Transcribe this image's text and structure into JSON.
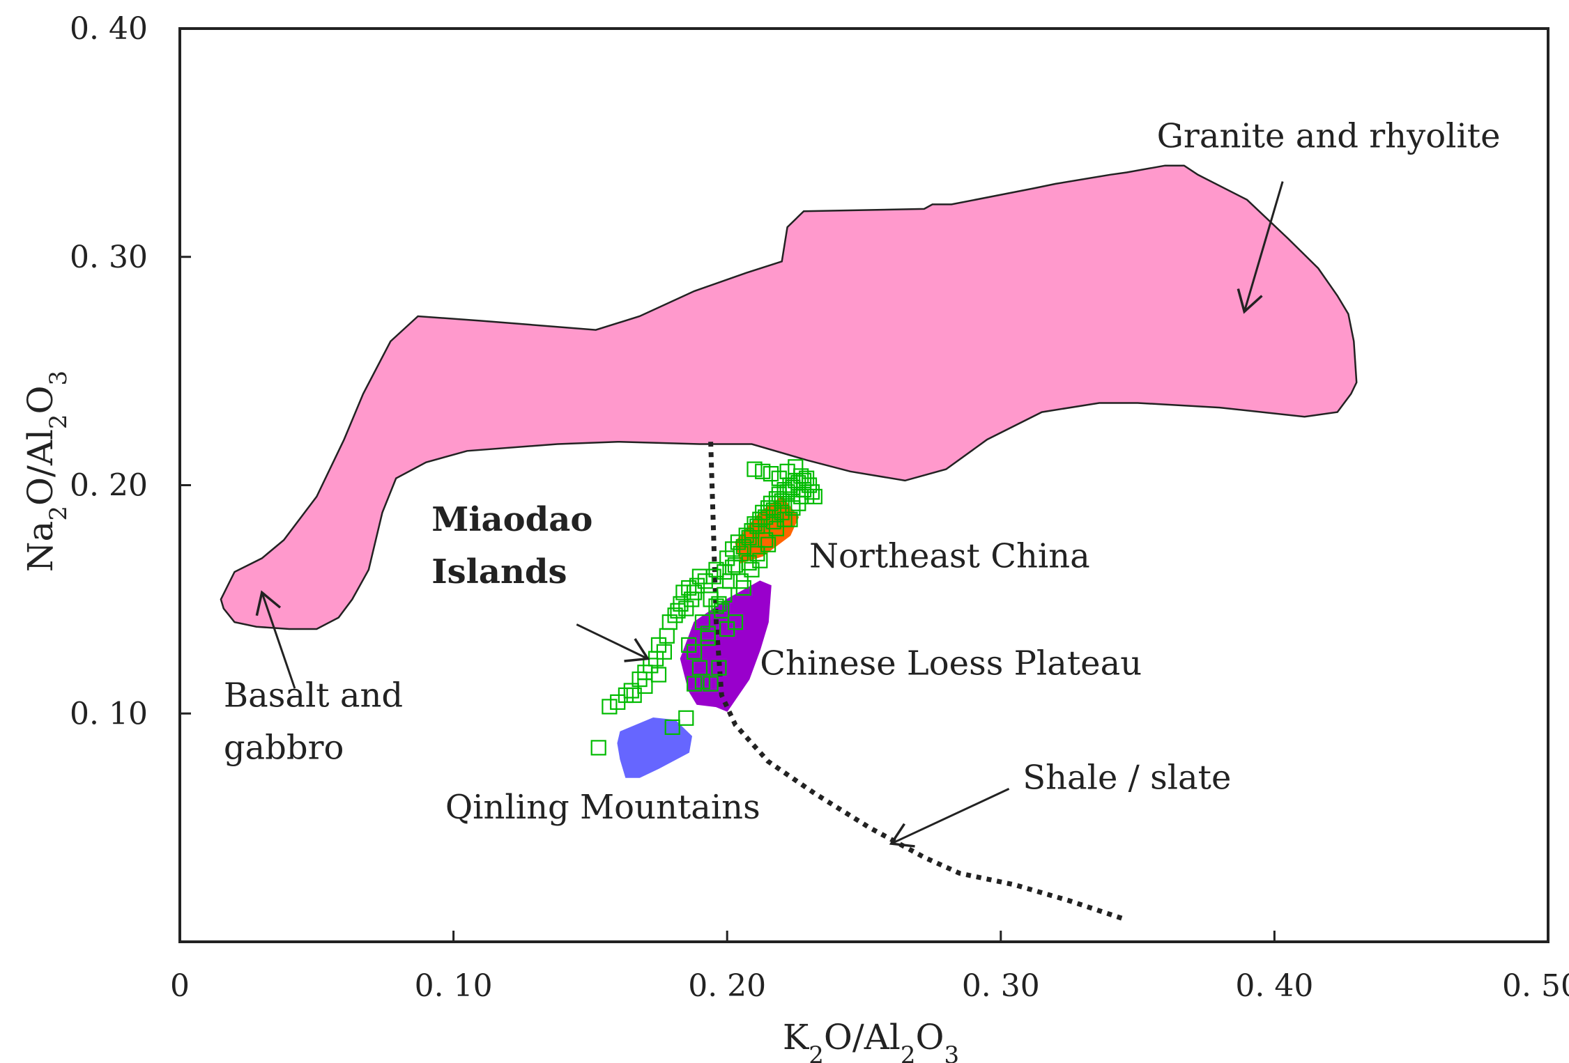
{
  "chart_data": {
    "type": "scatter",
    "xlabel": {
      "base1": "K",
      "sub1": "2",
      "base2": "O/Al",
      "sub2": "2",
      "base3": "O",
      "sub3": "3"
    },
    "ylabel": {
      "base1": "Na",
      "sub1": "2",
      "base2": "O/Al",
      "sub2": "2",
      "base3": "O",
      "sub3": "3"
    },
    "xlim": [
      0,
      0.5
    ],
    "ylim": [
      0,
      0.4
    ],
    "x_ticks": [
      {
        "value": 0,
        "label": "0"
      },
      {
        "value": 0.1,
        "label": "0. 10"
      },
      {
        "value": 0.2,
        "label": "0. 20"
      },
      {
        "value": 0.3,
        "label": "0. 30"
      },
      {
        "value": 0.4,
        "label": "0. 40"
      },
      {
        "value": 0.5,
        "label": "0. 50"
      }
    ],
    "y_ticks": [
      {
        "value": 0.1,
        "label": "0. 10"
      },
      {
        "value": 0.2,
        "label": "0. 20"
      },
      {
        "value": 0.3,
        "label": "0. 30"
      },
      {
        "value": 0.4,
        "label": "0. 40"
      }
    ],
    "fields": [
      {
        "name": "Granite and rhyolite field",
        "color": "#ff99cc",
        "polygon": [
          [
            0.015,
            0.15
          ],
          [
            0.02,
            0.162
          ],
          [
            0.03,
            0.168
          ],
          [
            0.038,
            0.176
          ],
          [
            0.05,
            0.195
          ],
          [
            0.06,
            0.22
          ],
          [
            0.067,
            0.24
          ],
          [
            0.077,
            0.263
          ],
          [
            0.087,
            0.274
          ],
          [
            0.11,
            0.272
          ],
          [
            0.152,
            0.268
          ],
          [
            0.168,
            0.274
          ],
          [
            0.188,
            0.285
          ],
          [
            0.207,
            0.293
          ],
          [
            0.22,
            0.298
          ],
          [
            0.222,
            0.313
          ],
          [
            0.228,
            0.32
          ],
          [
            0.272,
            0.321
          ],
          [
            0.275,
            0.323
          ],
          [
            0.282,
            0.323
          ],
          [
            0.312,
            0.33
          ],
          [
            0.32,
            0.332
          ],
          [
            0.34,
            0.336
          ],
          [
            0.346,
            0.337
          ],
          [
            0.36,
            0.34
          ],
          [
            0.367,
            0.34
          ],
          [
            0.372,
            0.336
          ],
          [
            0.39,
            0.325
          ],
          [
            0.405,
            0.308
          ],
          [
            0.416,
            0.295
          ],
          [
            0.423,
            0.283
          ],
          [
            0.427,
            0.275
          ],
          [
            0.429,
            0.263
          ],
          [
            0.43,
            0.245
          ],
          [
            0.428,
            0.24
          ],
          [
            0.423,
            0.232
          ],
          [
            0.411,
            0.23
          ],
          [
            0.38,
            0.234
          ],
          [
            0.35,
            0.236
          ],
          [
            0.336,
            0.236
          ],
          [
            0.315,
            0.232
          ],
          [
            0.295,
            0.22
          ],
          [
            0.28,
            0.207
          ],
          [
            0.265,
            0.202
          ],
          [
            0.245,
            0.206
          ],
          [
            0.229,
            0.211
          ],
          [
            0.209,
            0.218
          ],
          [
            0.19,
            0.218
          ],
          [
            0.16,
            0.219
          ],
          [
            0.138,
            0.218
          ],
          [
            0.105,
            0.215
          ],
          [
            0.09,
            0.21
          ],
          [
            0.079,
            0.203
          ],
          [
            0.074,
            0.188
          ],
          [
            0.069,
            0.163
          ],
          [
            0.063,
            0.15
          ],
          [
            0.058,
            0.142
          ],
          [
            0.05,
            0.137
          ],
          [
            0.04,
            0.137
          ],
          [
            0.028,
            0.138
          ],
          [
            0.02,
            0.14
          ],
          [
            0.016,
            0.146
          ]
        ]
      },
      {
        "name": "Chinese Loess Plateau field",
        "color": "#9900cc",
        "polygon": [
          [
            0.188,
            0.14
          ],
          [
            0.2,
            0.15
          ],
          [
            0.212,
            0.158
          ],
          [
            0.216,
            0.156
          ],
          [
            0.215,
            0.14
          ],
          [
            0.212,
            0.128
          ],
          [
            0.208,
            0.115
          ],
          [
            0.2,
            0.101
          ],
          [
            0.196,
            0.103
          ],
          [
            0.189,
            0.104
          ],
          [
            0.186,
            0.11
          ],
          [
            0.183,
            0.124
          ]
        ]
      },
      {
        "name": "Qinling Mountains field",
        "color": "#6666ff",
        "polygon": [
          [
            0.161,
            0.092
          ],
          [
            0.173,
            0.098
          ],
          [
            0.181,
            0.097
          ],
          [
            0.187,
            0.09
          ],
          [
            0.186,
            0.083
          ],
          [
            0.175,
            0.076
          ],
          [
            0.168,
            0.072
          ],
          [
            0.163,
            0.072
          ],
          [
            0.161,
            0.08
          ],
          [
            0.16,
            0.087
          ]
        ]
      },
      {
        "name": "Northeast China field",
        "color": "#ff6600",
        "polygon": [
          [
            0.203,
            0.175
          ],
          [
            0.212,
            0.188
          ],
          [
            0.22,
            0.195
          ],
          [
            0.226,
            0.186
          ],
          [
            0.223,
            0.178
          ],
          [
            0.213,
            0.169
          ],
          [
            0.205,
            0.166
          ]
        ]
      }
    ],
    "shale_slate_curve": {
      "color": "#222222",
      "points": [
        [
          0.194,
          0.219
        ],
        [
          0.195,
          0.18
        ],
        [
          0.196,
          0.14
        ],
        [
          0.198,
          0.108
        ],
        [
          0.203,
          0.095
        ],
        [
          0.215,
          0.079
        ],
        [
          0.232,
          0.065
        ],
        [
          0.252,
          0.05
        ],
        [
          0.272,
          0.037
        ],
        [
          0.285,
          0.03
        ],
        [
          0.305,
          0.025
        ],
        [
          0.325,
          0.018
        ],
        [
          0.345,
          0.01
        ]
      ]
    },
    "series": [
      {
        "marker": "open-square",
        "color": "#00bb00",
        "x": [
          0.153,
          0.157,
          0.16,
          0.163,
          0.165,
          0.168,
          0.17,
          0.172,
          0.174,
          0.175,
          0.177,
          0.179,
          0.181,
          0.183,
          0.185,
          0.186,
          0.187,
          0.188,
          0.189,
          0.19,
          0.191,
          0.192,
          0.193,
          0.194,
          0.195,
          0.196,
          0.197,
          0.198,
          0.199,
          0.2,
          0.201,
          0.202,
          0.203,
          0.204,
          0.205,
          0.206,
          0.207,
          0.208,
          0.209,
          0.21,
          0.211,
          0.212,
          0.213,
          0.214,
          0.215,
          0.216,
          0.217,
          0.218,
          0.219,
          0.22,
          0.221,
          0.222,
          0.223,
          0.224,
          0.225,
          0.226,
          0.227,
          0.228,
          0.229,
          0.23,
          0.231,
          0.17,
          0.175,
          0.178,
          0.182,
          0.184,
          0.186,
          0.188,
          0.19,
          0.193,
          0.196,
          0.199,
          0.202,
          0.205,
          0.208,
          0.211,
          0.214,
          0.217,
          0.22,
          0.223,
          0.226,
          0.229,
          0.232,
          0.166,
          0.18,
          0.185,
          0.188,
          0.191,
          0.194,
          0.197,
          0.2,
          0.203,
          0.206,
          0.209,
          0.212,
          0.215,
          0.218,
          0.221,
          0.224,
          0.227,
          0.21,
          0.213,
          0.216,
          0.219,
          0.222,
          0.225,
          0.228
        ],
        "y": [
          0.085,
          0.103,
          0.105,
          0.108,
          0.11,
          0.115,
          0.118,
          0.121,
          0.124,
          0.13,
          0.127,
          0.14,
          0.143,
          0.148,
          0.146,
          0.155,
          0.15,
          0.153,
          0.156,
          0.16,
          0.14,
          0.158,
          0.135,
          0.15,
          0.16,
          0.163,
          0.148,
          0.145,
          0.162,
          0.168,
          0.158,
          0.172,
          0.165,
          0.175,
          0.17,
          0.173,
          0.178,
          0.177,
          0.18,
          0.183,
          0.182,
          0.185,
          0.188,
          0.186,
          0.19,
          0.192,
          0.189,
          0.194,
          0.196,
          0.193,
          0.198,
          0.197,
          0.2,
          0.199,
          0.202,
          0.201,
          0.204,
          0.198,
          0.203,
          0.2,
          0.197,
          0.112,
          0.117,
          0.134,
          0.145,
          0.153,
          0.13,
          0.127,
          0.12,
          0.133,
          0.147,
          0.152,
          0.164,
          0.158,
          0.166,
          0.17,
          0.176,
          0.184,
          0.188,
          0.185,
          0.192,
          0.195,
          0.195,
          0.108,
          0.094,
          0.098,
          0.113,
          0.114,
          0.113,
          0.12,
          0.137,
          0.14,
          0.155,
          0.163,
          0.167,
          0.174,
          0.181,
          0.185,
          0.19,
          0.195,
          0.207,
          0.206,
          0.205,
          0.203,
          0.206,
          0.208,
          0.202
        ]
      }
    ],
    "annotations": [
      {
        "name": "granite-label",
        "lines": [
          "Granite and rhyolite"
        ],
        "bold": false,
        "x": 0.357,
        "y": 0.348
      },
      {
        "name": "basalt-label",
        "lines": [
          "Basalt and",
          "gabbro"
        ],
        "bold": false,
        "x": 0.016,
        "y": 0.103
      },
      {
        "name": "miaodao-label",
        "lines": [
          "Miaodao",
          "Islands"
        ],
        "bold": true,
        "x": 0.092,
        "y": 0.18
      },
      {
        "name": "northeast-label",
        "lines": [
          "Northeast China"
        ],
        "bold": false,
        "x": 0.23,
        "y": 0.164
      },
      {
        "name": "loess-label",
        "lines": [
          "Chinese Loess Plateau"
        ],
        "bold": false,
        "x": 0.212,
        "y": 0.117
      },
      {
        "name": "shale-label",
        "lines": [
          "Shale / slate"
        ],
        "bold": false,
        "x": 0.308,
        "y": 0.067
      },
      {
        "name": "qinling-label",
        "lines": [
          "Qinling Mountains"
        ],
        "bold": false,
        "x": 0.097,
        "y": 0.054
      }
    ],
    "arrows": [
      {
        "name": "granite-arrow",
        "from": [
          0.403,
          0.333
        ],
        "to": [
          0.389,
          0.276
        ]
      },
      {
        "name": "basalt-arrow",
        "from": [
          0.042,
          0.111
        ],
        "to": [
          0.03,
          0.153
        ]
      },
      {
        "name": "miaodao-arrow",
        "from": [
          0.145,
          0.139
        ],
        "to": [
          0.171,
          0.124
        ]
      },
      {
        "name": "shale-arrow",
        "from": [
          0.303,
          0.067
        ],
        "to": [
          0.26,
          0.043
        ]
      }
    ]
  }
}
